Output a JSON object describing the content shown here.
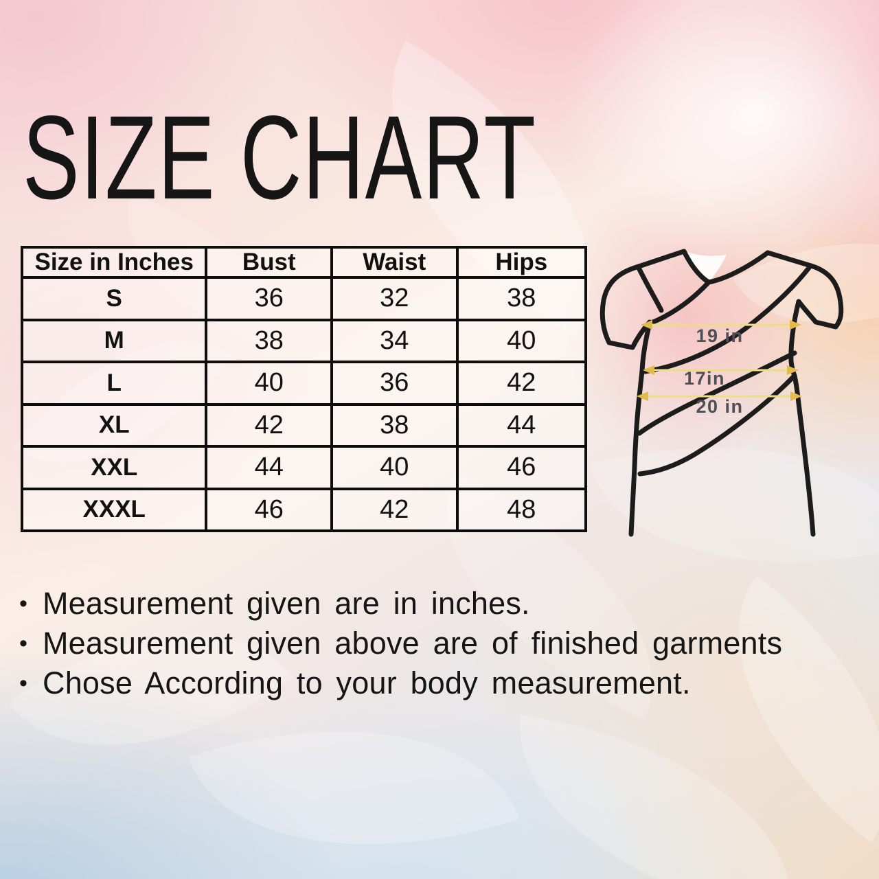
{
  "title": "SIZE CHART",
  "table": {
    "headers": [
      "Size in Inches",
      "Bust",
      "Waist",
      "Hips"
    ],
    "rows": [
      [
        "S",
        "36",
        "32",
        "38"
      ],
      [
        "M",
        "38",
        "34",
        "40"
      ],
      [
        "L",
        "40",
        "36",
        "42"
      ],
      [
        "XL",
        "42",
        "38",
        "44"
      ],
      [
        "XXL",
        "44",
        "40",
        "46"
      ],
      [
        "XXXL",
        "46",
        "42",
        "48"
      ]
    ]
  },
  "garment": {
    "bust_label": "19 in",
    "waist_label": "17in",
    "hips_label": "20 in"
  },
  "notes": [
    "Measurement given are in inches.",
    "Measurement given above are of finished garments",
    "Chose According to your body measurement."
  ],
  "colors": {
    "table_border": "#0d0d0d",
    "text": "#111111",
    "sketch_stroke": "#1c1c1c",
    "measure_line": "#ecdd86",
    "measure_arrow": "#e3ba4c",
    "measure_label": "#4f4f58"
  }
}
